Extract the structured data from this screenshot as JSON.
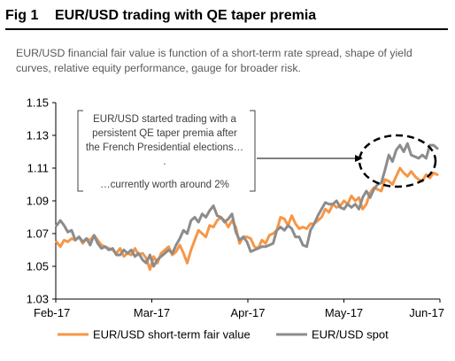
{
  "figure": {
    "number": "Fig 1",
    "title": "EUR/USD trading with QE taper premia",
    "subtitle": "EUR/USD financial fair value is function of a short-term rate spread, shape of yield curves, relative equity performance, gauge for broader risk."
  },
  "chart_data": {
    "type": "line",
    "ylim": [
      1.03,
      1.15
    ],
    "yticks": [
      "1.15",
      "1.13",
      "1.11",
      "1.09",
      "1.07",
      "1.05",
      "1.03"
    ],
    "xticks": [
      "Feb-17",
      "Mar-17",
      "Apr-17",
      "May-17",
      "Jun-17"
    ],
    "grid": false,
    "legend_position": "bottom",
    "annotation": {
      "lines": [
        "EUR/USD started trading with a",
        "persistent QE taper premia after",
        "the French Presidential elections…",
        ".",
        "…currently worth around 2%"
      ]
    },
    "colors": {
      "fair_value": "#F79646",
      "spot": "#8C8C8C"
    },
    "series": [
      {
        "name": "EUR/USD short-term fair value",
        "values": [
          1.065,
          1.062,
          1.066,
          1.065,
          1.067,
          1.066,
          1.068,
          1.064,
          1.067,
          1.066,
          1.069,
          1.066,
          1.063,
          1.062,
          1.061,
          1.06,
          1.058,
          1.061,
          1.056,
          1.058,
          1.057,
          1.061,
          1.057,
          1.058,
          1.055,
          1.048,
          1.056,
          1.052,
          1.058,
          1.06,
          1.062,
          1.057,
          1.059,
          1.063,
          1.058,
          1.052,
          1.06,
          1.066,
          1.072,
          1.07,
          1.068,
          1.075,
          1.074,
          1.078,
          1.08,
          1.078,
          1.074,
          1.078,
          1.074,
          1.064,
          1.068,
          1.068,
          1.067,
          1.062,
          1.061,
          1.066,
          1.064,
          1.069,
          1.07,
          1.072,
          1.08,
          1.079,
          1.075,
          1.081,
          1.076,
          1.073,
          1.074,
          1.073,
          1.076,
          1.076,
          1.078,
          1.08,
          1.085,
          1.083,
          1.088,
          1.086,
          1.087,
          1.09,
          1.088,
          1.093,
          1.09,
          1.092,
          1.085,
          1.088,
          1.095,
          1.098,
          1.097,
          1.096,
          1.103,
          1.102,
          1.1,
          1.105,
          1.11,
          1.107,
          1.105,
          1.108,
          1.105,
          1.103,
          1.102,
          1.106,
          1.104,
          1.107,
          1.106
        ]
      },
      {
        "name": "EUR/USD spot",
        "values": [
          1.075,
          1.078,
          1.075,
          1.071,
          1.072,
          1.066,
          1.068,
          1.065,
          1.067,
          1.063,
          1.069,
          1.064,
          1.061,
          1.062,
          1.06,
          1.061,
          1.057,
          1.057,
          1.06,
          1.058,
          1.06,
          1.056,
          1.058,
          1.054,
          1.052,
          1.057,
          1.05,
          1.054,
          1.056,
          1.058,
          1.06,
          1.058,
          1.063,
          1.067,
          1.072,
          1.07,
          1.078,
          1.08,
          1.077,
          1.082,
          1.08,
          1.084,
          1.087,
          1.081,
          1.08,
          1.077,
          1.079,
          1.082,
          1.071,
          1.066,
          1.068,
          1.065,
          1.059,
          1.06,
          1.061,
          1.062,
          1.062,
          1.063,
          1.064,
          1.072,
          1.074,
          1.072,
          1.075,
          1.073,
          1.068,
          1.068,
          1.063,
          1.062,
          1.072,
          1.076,
          1.081,
          1.085,
          1.089,
          1.088,
          1.088,
          1.09,
          1.086,
          1.085,
          1.088,
          1.086,
          1.088,
          1.085,
          1.092,
          1.096,
          1.092,
          1.097,
          1.1,
          1.101,
          1.109,
          1.118,
          1.114,
          1.121,
          1.124,
          1.12,
          1.125,
          1.118,
          1.117,
          1.116,
          1.118,
          1.116,
          1.124,
          1.124,
          1.122
        ]
      }
    ]
  }
}
